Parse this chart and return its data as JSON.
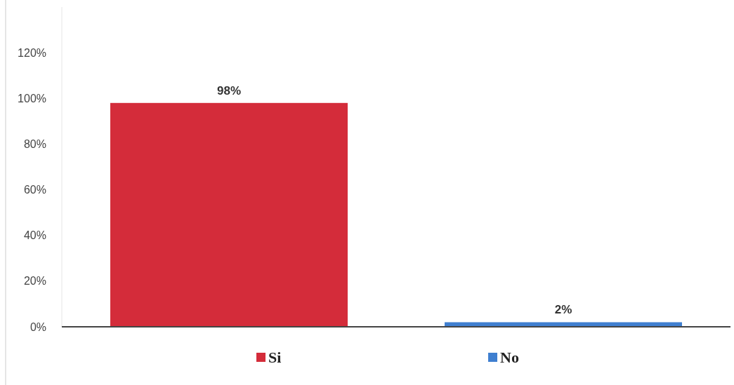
{
  "chart_data": {
    "type": "bar",
    "categories": [
      null,
      null
    ],
    "series": [
      {
        "name": "Si",
        "color": "#d42c3a",
        "values": [
          98,
          null
        ],
        "value_labels": [
          "98%",
          null
        ]
      },
      {
        "name": "No",
        "color": "#3f7fd0",
        "values": [
          null,
          2
        ],
        "value_labels": [
          null,
          "2%"
        ]
      }
    ],
    "ylim": [
      0,
      140
    ],
    "yticks": [
      {
        "value": 0,
        "label": "0%"
      },
      {
        "value": 20,
        "label": "20%"
      },
      {
        "value": 40,
        "label": "40%"
      },
      {
        "value": 60,
        "label": "60%"
      },
      {
        "value": 80,
        "label": "80%"
      },
      {
        "value": 100,
        "label": "100%"
      },
      {
        "value": 120,
        "label": "120%"
      }
    ],
    "grid": false,
    "legend": "bottom"
  }
}
